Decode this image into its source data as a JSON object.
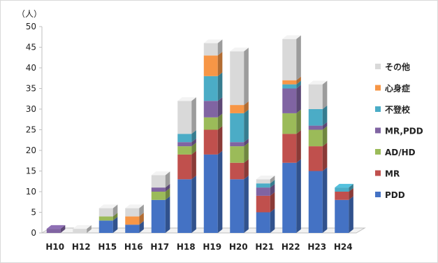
{
  "chart_data": {
    "type": "bar",
    "stacked": true,
    "y_unit_label": "（人）",
    "categories": [
      "H10",
      "H12",
      "H15",
      "H16",
      "H17",
      "H18",
      "H19",
      "H20",
      "H21",
      "H22",
      "H23",
      "H24"
    ],
    "ylim": [
      0,
      50
    ],
    "yticks": [
      0,
      5,
      10,
      15,
      20,
      25,
      30,
      35,
      40,
      45,
      50
    ],
    "grid": false,
    "legend_position": "right",
    "series": [
      {
        "name": "PDD",
        "color": "#4472C4",
        "values": [
          0,
          0,
          3,
          2,
          8,
          13,
          19,
          13,
          5,
          17,
          15,
          8
        ]
      },
      {
        "name": "MR",
        "color": "#C0504D",
        "values": [
          0,
          0,
          0,
          0,
          0,
          6,
          6,
          4,
          4,
          7,
          6,
          2
        ]
      },
      {
        "name": "AD/HD",
        "color": "#9BBB59",
        "values": [
          0,
          0,
          1,
          0,
          2,
          2,
          3,
          4,
          0,
          5,
          4,
          0
        ]
      },
      {
        "name": "MR,PDD",
        "color": "#8064A2",
        "values": [
          1,
          0,
          0,
          0,
          1,
          1,
          4,
          1,
          2,
          6,
          1,
          0
        ]
      },
      {
        "name": "不登校",
        "color": "#4BACC6",
        "values": [
          0,
          0,
          0,
          0,
          0,
          2,
          6,
          7,
          1,
          1,
          4,
          1
        ]
      },
      {
        "name": "心身症",
        "color": "#F79646",
        "values": [
          0,
          0,
          0,
          2,
          0,
          0,
          5,
          2,
          0,
          1,
          0,
          0
        ]
      },
      {
        "name": "その他",
        "color": "#D9D9D9",
        "values": [
          0,
          1,
          2,
          2,
          3,
          8,
          3,
          13,
          1,
          10,
          6,
          0
        ]
      }
    ]
  }
}
